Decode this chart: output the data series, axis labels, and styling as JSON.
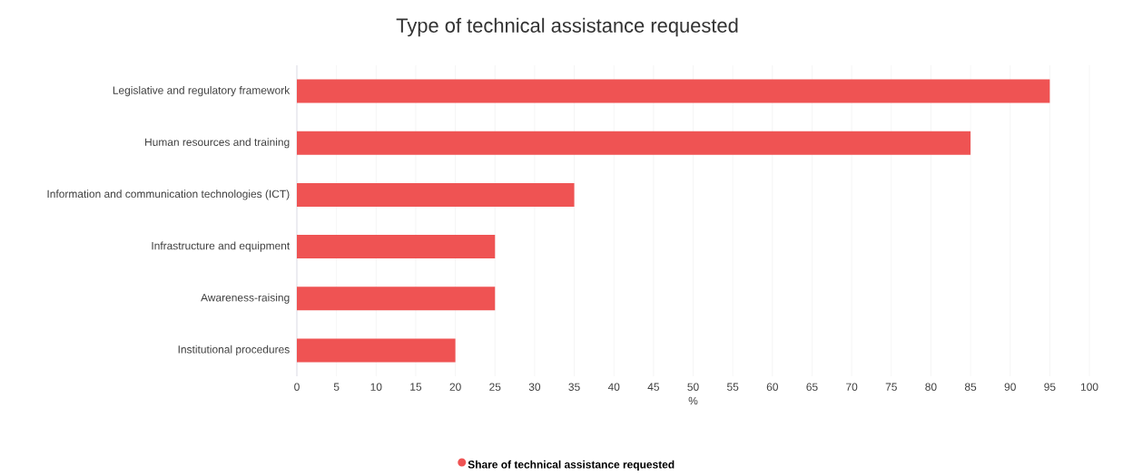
{
  "chart_data": {
    "type": "bar",
    "orientation": "horizontal",
    "title": "Type of technical assistance requested",
    "xlabel": "%",
    "categories": [
      "Legislative and regulatory framework",
      "Human resources and training",
      "Information and communication technologies (ICT)",
      "Infrastructure and equipment",
      "Awareness-raising",
      "Institutional procedures"
    ],
    "series": [
      {
        "name": "Share of technical assistance requested",
        "color": "#ef5353",
        "values": [
          95,
          85,
          35,
          25,
          25,
          20
        ]
      }
    ],
    "xlim": [
      0,
      100
    ],
    "xticks": [
      0,
      5,
      10,
      15,
      20,
      25,
      30,
      35,
      40,
      45,
      50,
      55,
      60,
      65,
      70,
      75,
      80,
      85,
      90,
      95,
      100
    ],
    "grid": "x",
    "legend": "bottom"
  }
}
